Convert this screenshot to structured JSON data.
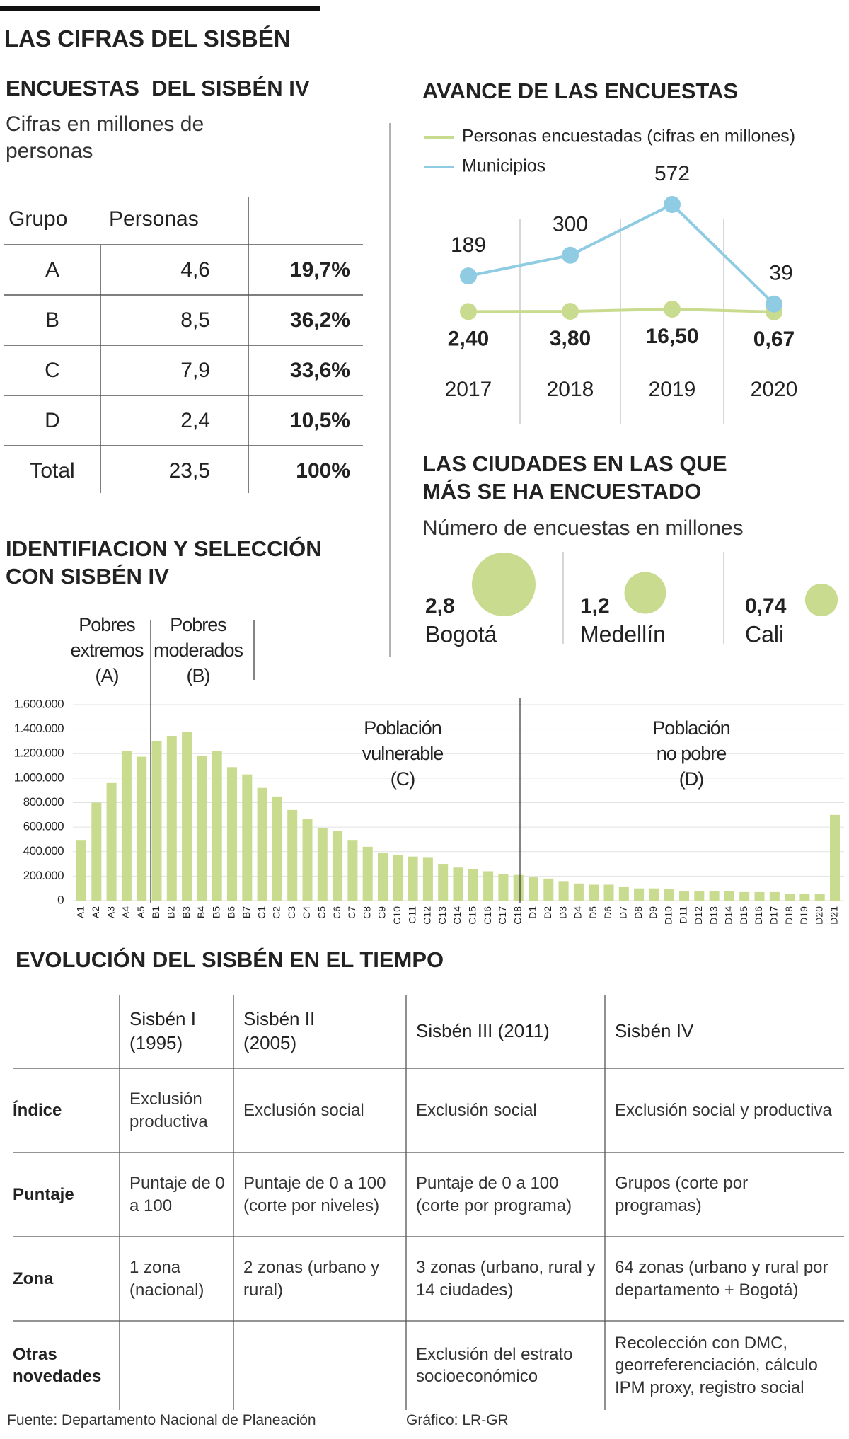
{
  "title": "LAS CIFRAS DEL SISBÉN",
  "encuestas": {
    "title": "ENCUESTAS  DEL SISBÉN IV",
    "subtitle": "Cifras en millones de personas",
    "header": [
      "Grupo",
      "Personas"
    ],
    "rows": [
      [
        "A",
        "4,6",
        "19,7%"
      ],
      [
        "B",
        "8,5",
        "36,2%"
      ],
      [
        "C",
        "7,9",
        "33,6%"
      ],
      [
        "D",
        "2,4",
        "10,5%"
      ],
      [
        "Total",
        "23,5",
        "100%"
      ]
    ]
  },
  "chart_data": [
    {
      "type": "line",
      "title": "AVANCE DE LAS ENCUESTAS",
      "categories": [
        "2017",
        "2018",
        "2019",
        "2020"
      ],
      "series": [
        {
          "name": "Personas encuestadas (cifras en millones)",
          "color": "#c8db8e",
          "values": [
            2.4,
            3.8,
            16.5,
            0.67
          ],
          "value_labels": [
            "2,40",
            "3,80",
            "16,50",
            "0,67"
          ]
        },
        {
          "name": "Municipios",
          "color": "#8fcbe3",
          "values": [
            189,
            300,
            572,
            39
          ]
        }
      ]
    },
    {
      "type": "bubble",
      "title": "LAS CIUDADES EN LAS QUE MÁS SE HA ENCUESTADO",
      "subtitle": "Número de encuestas en millones",
      "categories": [
        "Bogotá",
        "Medellín",
        "Cali"
      ],
      "values": [
        2.8,
        1.2,
        0.74
      ],
      "value_labels": [
        "2,8",
        "1,2",
        "0,74"
      ],
      "color": "#c8db8e"
    },
    {
      "type": "bar",
      "title": "IDENTIFIACION Y SELECCIÓN CON SISBÉN IV",
      "categories": [
        "A1",
        "A2",
        "A3",
        "A4",
        "A5",
        "B1",
        "B2",
        "B3",
        "B4",
        "B5",
        "B6",
        "B7",
        "C1",
        "C2",
        "C3",
        "C4",
        "C5",
        "C6",
        "C7",
        "C8",
        "C9",
        "C10",
        "C11",
        "C12",
        "C13",
        "C14",
        "C15",
        "C16",
        "C17",
        "C18",
        "D1",
        "D2",
        "D3",
        "D4",
        "D5",
        "D6",
        "D7",
        "D8",
        "D9",
        "D10",
        "D11",
        "D12",
        "D13",
        "D14",
        "D15",
        "D16",
        "D17",
        "D18",
        "D19",
        "D20",
        "D21"
      ],
      "values": [
        490000,
        800000,
        960000,
        1220000,
        1175000,
        1300000,
        1340000,
        1375000,
        1180000,
        1220000,
        1090000,
        1030000,
        920000,
        850000,
        740000,
        670000,
        590000,
        570000,
        490000,
        440000,
        390000,
        370000,
        360000,
        350000,
        300000,
        270000,
        260000,
        240000,
        215000,
        210000,
        190000,
        180000,
        160000,
        140000,
        130000,
        130000,
        110000,
        100000,
        100000,
        95000,
        80000,
        80000,
        80000,
        75000,
        70000,
        70000,
        70000,
        55000,
        55000,
        55000,
        700000
      ],
      "color": "#c8db8e",
      "grid": true,
      "ylim": [
        0,
        1600000
      ],
      "yticks": [
        0,
        {
          "value": 200000,
          "label": "200.000"
        },
        {
          "value": 400000,
          "label": "400.000"
        },
        {
          "value": 600000,
          "label": "600.000"
        },
        {
          "value": 800000,
          "label": "800.000"
        },
        {
          "value": 1000000,
          "label": "1.000.000"
        },
        {
          "value": 1200000,
          "label": "1.200.000"
        },
        {
          "value": 1400000,
          "label": "1.400.000"
        },
        {
          "value": 1600000,
          "label": "1.600.000"
        }
      ],
      "annotations": [
        [
          "Pobres",
          "extremos",
          "(A)"
        ],
        [
          "Pobres",
          "moderados",
          "(B)"
        ],
        [
          "Población",
          "vulnerable",
          "(C)"
        ],
        [
          "Población",
          "no pobre",
          "(D)"
        ]
      ]
    }
  ],
  "evolucion": {
    "title": "EVOLUCIÓN DEL SISBÉN EN EL TIEMPO",
    "columns": [
      "Sisbén I (1995)",
      "Sisbén II (2005)",
      "Sisbén III (2011)",
      "Sisbén IV"
    ],
    "rows": [
      {
        "label": "Índice",
        "cells": [
          "Exclusión productiva",
          "Exclusión social",
          "Exclusión social",
          "Exclusión social y productiva"
        ]
      },
      {
        "label": "Puntaje",
        "cells": [
          "Puntaje de 0 a 100",
          "Puntaje de 0 a 100 (corte por niveles)",
          "Puntaje de 0 a 100 (corte por programa)",
          "Grupos (corte por programas)"
        ]
      },
      {
        "label": "Zona",
        "cells": [
          "1 zona (nacional)",
          "2 zonas (urbano y rural)",
          "3 zonas (urbano, rural y 14 ciudades)",
          "64 zonas (urbano y rural por departamento + Bogotá)"
        ]
      },
      {
        "label": "Otras novedades",
        "cells": [
          null,
          null,
          "Exclusión del estrato socioeconómico",
          "Recolección con DMC, georreferenciación, cálculo IPM proxy, registro social"
        ]
      }
    ]
  },
  "source": "Fuente: Departamento Nacional de Planeación",
  "credit": "Gráfico: LR-GR"
}
